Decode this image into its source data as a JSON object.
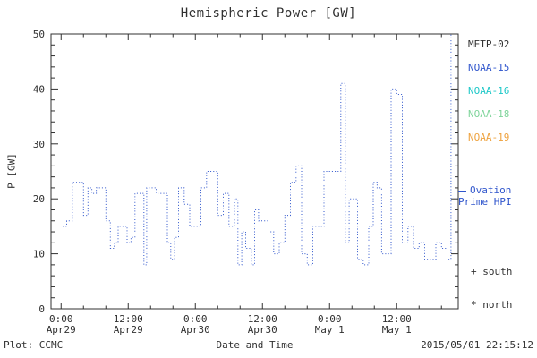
{
  "title": "Hemispheric Power [GW]",
  "legend": {
    "satellites": [
      {
        "label": "METP-02",
        "color": "#303030"
      },
      {
        "label": "NOAA-15",
        "color": "#2f55cc"
      },
      {
        "label": "NOAA-16",
        "color": "#1ec8c8"
      },
      {
        "label": "NOAA-18",
        "color": "#7ed49a"
      },
      {
        "label": "NOAA-19",
        "color": "#eea23e"
      }
    ],
    "ovation": {
      "line1": "Ovation",
      "line2": "Prime HPI",
      "color": "#2f55cc"
    },
    "south": "+ south",
    "north": "* north"
  },
  "footer": {
    "left": "Plot: CCMC",
    "right": "2015/05/01 22:15:12"
  },
  "chart_data": {
    "type": "line",
    "style": "dotted-step",
    "title": "Hemispheric Power [GW]",
    "xlabel": "Date and Time",
    "ylabel": "P [GW]",
    "ylim": [
      0,
      50
    ],
    "y_ticks": [
      0,
      10,
      20,
      30,
      40,
      50
    ],
    "y_minor_step": 2,
    "x_ticks": [
      {
        "hour": 0,
        "time": "0:00",
        "date": "Apr29"
      },
      {
        "hour": 12,
        "time": "12:00",
        "date": "Apr29"
      },
      {
        "hour": 24,
        "time": "0:00",
        "date": "Apr30"
      },
      {
        "hour": 36,
        "time": "12:00",
        "date": "Apr30"
      },
      {
        "hour": 48,
        "time": "0:00",
        "date": "May 1"
      },
      {
        "hour": 60,
        "time": "12:00",
        "date": "May 1"
      }
    ],
    "x_minor_step_hours": 4,
    "x_range_hours": [
      -1.8,
      71
    ],
    "axis_color": "#303030",
    "line_color": "#2f55cc",
    "series": [
      {
        "name": "NOAA-15 Ovation Prime HPI",
        "points_hour_gw": [
          [
            0.3,
            15
          ],
          [
            1,
            16
          ],
          [
            2,
            23
          ],
          [
            3,
            23
          ],
          [
            4,
            17
          ],
          [
            4.8,
            22
          ],
          [
            5.5,
            21
          ],
          [
            6.3,
            22
          ],
          [
            7,
            22
          ],
          [
            8,
            16
          ],
          [
            8.8,
            11
          ],
          [
            9.5,
            12
          ],
          [
            10.2,
            15
          ],
          [
            11,
            15
          ],
          [
            11.8,
            12
          ],
          [
            12.5,
            13
          ],
          [
            13.2,
            21
          ],
          [
            14,
            21
          ],
          [
            14.8,
            8
          ],
          [
            15.3,
            22
          ],
          [
            16,
            22
          ],
          [
            17,
            21
          ],
          [
            18,
            21
          ],
          [
            19,
            12
          ],
          [
            19.6,
            9
          ],
          [
            20.3,
            13
          ],
          [
            21,
            22
          ],
          [
            22,
            19
          ],
          [
            23,
            15
          ],
          [
            24,
            15
          ],
          [
            25,
            22
          ],
          [
            26,
            25
          ],
          [
            27,
            25
          ],
          [
            28,
            17
          ],
          [
            29,
            21
          ],
          [
            30,
            15
          ],
          [
            31,
            20
          ],
          [
            31.6,
            8
          ],
          [
            32.3,
            14
          ],
          [
            33,
            11
          ],
          [
            34,
            8
          ],
          [
            34.6,
            18
          ],
          [
            35.3,
            16
          ],
          [
            36,
            16
          ],
          [
            37,
            14
          ],
          [
            38,
            10
          ],
          [
            39,
            12
          ],
          [
            40,
            17
          ],
          [
            41,
            23
          ],
          [
            42,
            26
          ],
          [
            43,
            10
          ],
          [
            44,
            8
          ],
          [
            45,
            15
          ],
          [
            46,
            15
          ],
          [
            47,
            25
          ],
          [
            48.5,
            25
          ],
          [
            50,
            41
          ],
          [
            50.8,
            12
          ],
          [
            51.5,
            20
          ],
          [
            52.3,
            20
          ],
          [
            53,
            9
          ],
          [
            54,
            8
          ],
          [
            55,
            15
          ],
          [
            55.8,
            23
          ],
          [
            56.5,
            22
          ],
          [
            57.3,
            10
          ],
          [
            59,
            40
          ],
          [
            60,
            39
          ],
          [
            61,
            12
          ],
          [
            62,
            15
          ],
          [
            63,
            11
          ],
          [
            64,
            12
          ],
          [
            65,
            9
          ],
          [
            66,
            9
          ],
          [
            67,
            12
          ],
          [
            68,
            11
          ],
          [
            69,
            9
          ],
          [
            69.7,
            50
          ]
        ]
      }
    ]
  }
}
